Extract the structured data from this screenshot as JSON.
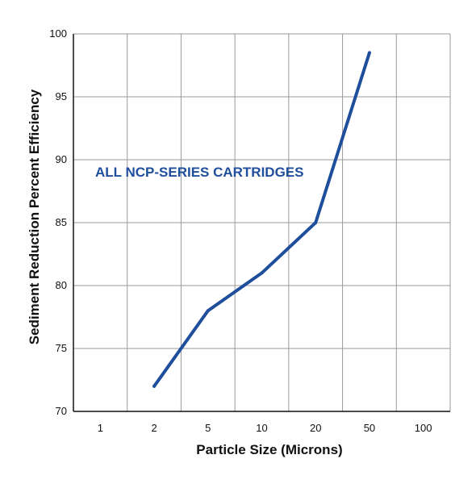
{
  "chart_data": {
    "type": "line",
    "x_categories": [
      "1",
      "2",
      "5",
      "10",
      "20",
      "50",
      "100"
    ],
    "xlabel": "Particle Size (Microns)",
    "ylabel": "Sediment Reduction Percent Efficiency",
    "ylim": [
      70,
      100
    ],
    "yticks": [
      "70",
      "75",
      "80",
      "85",
      "90",
      "95",
      "100"
    ],
    "grid": true,
    "annotation": "ALL NCP-SERIES CARTRIDGES",
    "series": [
      {
        "x": [
          "2",
          "5",
          "10",
          "20",
          "50"
        ],
        "values": [
          72,
          78,
          81,
          85,
          98.5
        ],
        "color": "#1f4e9c"
      }
    ]
  }
}
